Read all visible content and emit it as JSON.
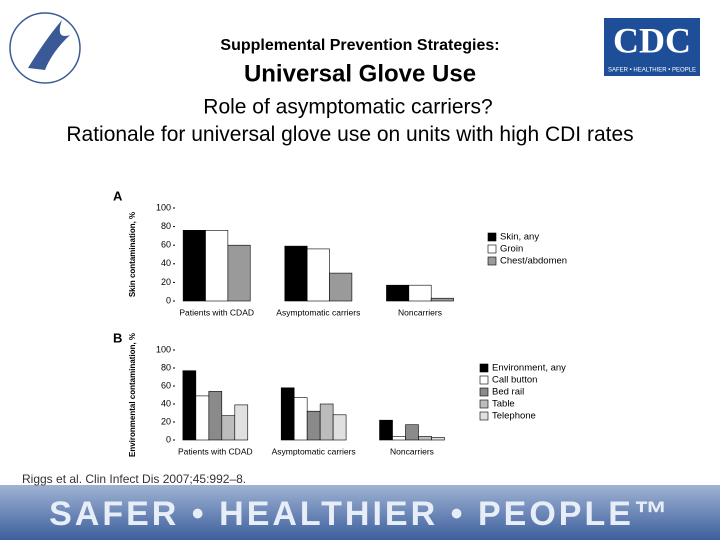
{
  "header": {
    "kicker": "Supplemental Prevention Strategies:",
    "title": "Universal Glove Use",
    "question": "Role of asymptomatic carriers?",
    "rationale": "Rationale for universal glove use on units with high CDI rates",
    "logo": "CDC",
    "logo_tagline": "SAFER • HEALTHIER • PEOPLE"
  },
  "chart_data": [
    {
      "type": "bar",
      "panel": "A",
      "ylabel": "Skin contamination, %",
      "categories": [
        "Patients with CDAD",
        "Asymptomatic carriers",
        "Noncarriers"
      ],
      "series": [
        {
          "name": "Skin, any",
          "color": "#000000",
          "values": [
            76,
            59,
            17
          ]
        },
        {
          "name": "Groin",
          "color": "#ffffff",
          "values": [
            76,
            56,
            17
          ]
        },
        {
          "name": "Chest/abdomen",
          "color": "#9a9a9a",
          "values": [
            60,
            30,
            3
          ]
        }
      ],
      "ylim": [
        0,
        100
      ],
      "yticks": [
        0,
        20,
        40,
        60,
        80,
        100
      ]
    },
    {
      "type": "bar",
      "panel": "B",
      "ylabel": "Environmental contamination, %",
      "categories": [
        "Patients with CDAD",
        "Asymptomatic carriers",
        "Noncarriers"
      ],
      "series": [
        {
          "name": "Environment, any",
          "color": "#000000",
          "values": [
            77,
            58,
            22
          ]
        },
        {
          "name": "Call button",
          "color": "#ffffff",
          "values": [
            49,
            47,
            4
          ]
        },
        {
          "name": "Bed rail",
          "color": "#8a8a8a",
          "values": [
            54,
            32,
            17
          ]
        },
        {
          "name": "Table",
          "color": "#bcbcbc",
          "values": [
            27,
            40,
            4
          ]
        },
        {
          "name": "Telephone",
          "color": "#e0e0e0",
          "values": [
            39,
            28,
            3
          ]
        }
      ],
      "ylim": [
        0,
        100
      ],
      "yticks": [
        0,
        20,
        40,
        60,
        80,
        100
      ]
    }
  ],
  "citation": "Riggs et al. Clin Infect Dis 2007;45:992–8.",
  "footer": "SAFER • HEALTHIER • PEOPLE™"
}
